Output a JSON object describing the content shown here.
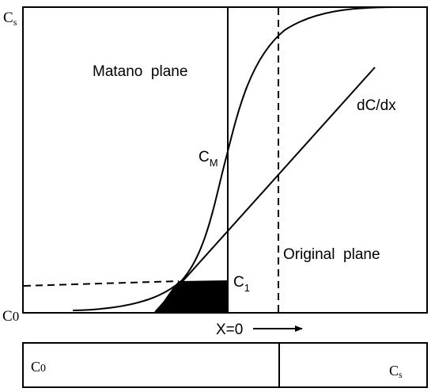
{
  "labels": {
    "y_top": "C",
    "y_top_sub": "s",
    "y_bottom": "C",
    "y_bottom_sub": "0",
    "matano_plane": "Matano  plane",
    "original_plane": "Original  plane",
    "slope": "dC/dx",
    "cm": "C",
    "cm_sub": "M",
    "c1": "C",
    "c1_sub": "1",
    "x_zero": "X=0",
    "bar_left": "C",
    "bar_left_sub": "0",
    "bar_right": "C",
    "bar_right_sub": "s"
  }
}
